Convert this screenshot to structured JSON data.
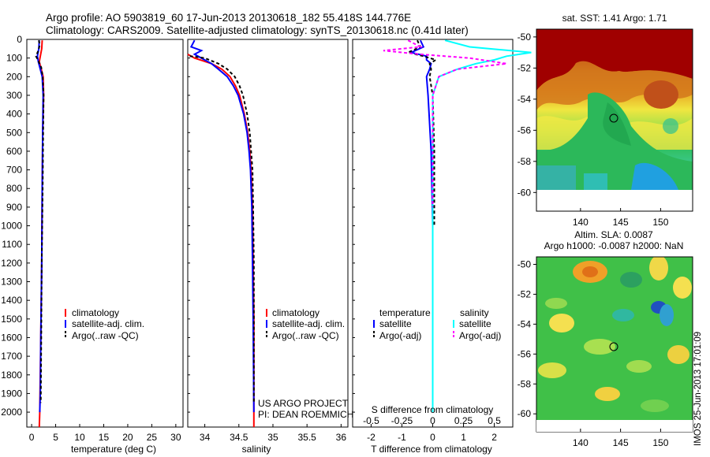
{
  "header": {
    "title_line1": "Argo profile: AO 5903819_60 17-Jun-2013 20130618_182 55.418S 144.776E",
    "title_line2": "Climatology: CARS2009. Satellite-adjusted climatology: synTS_20130618.nc (0.41d later)"
  },
  "colors": {
    "climatology": "#ff0000",
    "satellite": "#0000ff",
    "argo": "#000000",
    "sal_satellite": "#00ffff",
    "sal_argo": "#ff00ff"
  },
  "footer": {
    "project_line1": "US ARGO PROJECT",
    "project_line2": "PI: DEAN ROEMMICH",
    "timestamp": "IMOS 25-Jun-2013 17:01:09"
  },
  "chart_data": [
    {
      "id": "temperature",
      "type": "line",
      "xlabel": "temperature (deg C)",
      "ylabel": "depth",
      "xlim": [
        -1,
        31.5
      ],
      "ylim": [
        2080,
        0
      ],
      "xticks": [
        0,
        5,
        10,
        15,
        20,
        25,
        30
      ],
      "yticks": [
        0,
        100,
        200,
        300,
        400,
        500,
        600,
        700,
        800,
        900,
        1000,
        1100,
        1200,
        1300,
        1400,
        1500,
        1600,
        1700,
        1800,
        1900,
        2000
      ],
      "legend": [
        "climatology",
        "satellite-adj. clim.",
        "Argo(..raw -QC)"
      ],
      "series": [
        {
          "name": "climatology",
          "depth": [
            5,
            50,
            90,
            120,
            200,
            300,
            500,
            800,
            1200,
            1600,
            2000,
            2080
          ],
          "values": [
            2.2,
            2.1,
            1.8,
            1.6,
            2.4,
            2.5,
            2.3,
            2.2,
            2.1,
            1.9,
            1.7,
            1.6
          ]
        },
        {
          "name": "satellite-adj. clim.",
          "depth": [
            5,
            50,
            90,
            120,
            200,
            300,
            500,
            800,
            1200,
            1600,
            1900,
            2000
          ],
          "values": [
            1.6,
            1.5,
            1.2,
            1.4,
            2.2,
            2.4,
            2.3,
            2.2,
            2.1,
            1.9,
            1.8,
            1.7
          ]
        },
        {
          "name": "Argo(..raw -QC)",
          "depth": [
            5,
            30,
            60,
            90,
            110,
            150,
            200,
            300,
            500,
            800,
            1200,
            1600,
            1950
          ],
          "values": [
            1.5,
            1.7,
            1.4,
            0.9,
            1.3,
            2.0,
            2.3,
            2.5,
            2.4,
            2.3,
            2.1,
            2.0,
            1.9
          ]
        }
      ]
    },
    {
      "id": "salinity",
      "type": "line",
      "xlabel": "salinity",
      "ylabel": "depth",
      "xlim": [
        33.75,
        36.1
      ],
      "ylim": [
        2080,
        0
      ],
      "xticks": [
        34,
        34.5,
        35,
        35.5,
        36
      ],
      "legend": [
        "climatology",
        "satellite-adj. clim.",
        "Argo(..raw -QC)"
      ],
      "series": [
        {
          "name": "climatology",
          "depth": [
            80,
            100,
            130,
            160,
            200,
            250,
            300,
            400,
            500,
            600,
            700,
            900,
            1200,
            1500,
            2000,
            2080
          ],
          "values": [
            33.75,
            33.85,
            34.1,
            34.25,
            34.37,
            34.45,
            34.51,
            34.58,
            34.63,
            34.66,
            34.68,
            34.7,
            34.71,
            34.72,
            34.72,
            34.72
          ]
        },
        {
          "name": "satellite-adj. clim.",
          "depth": [
            5,
            40,
            60,
            80,
            100,
            130,
            160,
            200,
            250,
            300,
            400,
            500,
            600,
            700,
            900,
            1200,
            1500,
            2000
          ],
          "values": [
            33.85,
            33.8,
            33.95,
            33.85,
            33.95,
            34.1,
            34.2,
            34.33,
            34.42,
            34.49,
            34.57,
            34.62,
            34.65,
            34.67,
            34.69,
            34.7,
            34.71,
            34.72
          ]
        },
        {
          "name": "Argo(..raw -QC)",
          "depth": [
            90,
            100,
            130,
            160,
            200,
            250,
            300,
            400,
            500,
            600,
            700,
            900,
            1200,
            1500,
            1950
          ],
          "values": [
            33.78,
            34.0,
            34.2,
            34.33,
            34.44,
            34.51,
            34.56,
            34.62,
            34.66,
            34.68,
            34.7,
            34.71,
            34.72,
            34.72,
            34.72
          ]
        }
      ]
    },
    {
      "id": "difference",
      "type": "line",
      "xlabel": "T difference from climatology",
      "xlabel_top": "S difference from climatology",
      "ylabel": "depth",
      "xlim": [
        -2.6,
        2.6
      ],
      "ylim": [
        2080,
        0
      ],
      "xticks": [
        -2,
        -1,
        0,
        1,
        2
      ],
      "xticks_s": [
        -0.5,
        -0.25,
        0,
        0.25,
        0.5
      ],
      "legend_titles": [
        "temperature",
        "salinity"
      ],
      "legend": [
        "satellite",
        "Argo(-adj)",
        "satellite",
        "Argo(-adj)"
      ],
      "series": [
        {
          "name": "temperature satellite",
          "depth": [
            5,
            40,
            70,
            90,
            110,
            130,
            160,
            200,
            300,
            600,
            1000,
            1500,
            2000
          ],
          "values": [
            -0.4,
            -0.3,
            -0.7,
            -0.2,
            -0.2,
            -0.05,
            -0.1,
            -0.2,
            -0.15,
            -0.05,
            0,
            0,
            0
          ]
        },
        {
          "name": "temperature Argo(-adj)",
          "depth": [
            5,
            40,
            70,
            90,
            110,
            130,
            160,
            200,
            300,
            600,
            1000
          ],
          "values": [
            -0.5,
            -0.4,
            -0.8,
            -0.3,
            0.1,
            -0.1,
            -0.05,
            -0.1,
            0,
            0.05,
            0.05
          ]
        },
        {
          "name": "salinity satellite",
          "depth": [
            5,
            40,
            70,
            90,
            110,
            130,
            160,
            200,
            300,
            600,
            1000,
            2000
          ],
          "values": [
            0.1,
            0.3,
            0.8,
            0.6,
            0.5,
            0.35,
            0.2,
            0.05,
            0,
            0,
            0,
            0
          ]
        },
        {
          "name": "salinity Argo(-adj)",
          "depth": [
            5,
            40,
            60,
            80,
            100,
            130,
            160,
            200,
            300,
            600,
            900
          ],
          "values": [
            -0.2,
            -0.1,
            -0.4,
            -0.1,
            0.3,
            0.6,
            0.2,
            0.05,
            0,
            0,
            0
          ]
        }
      ]
    },
    {
      "id": "sst_map",
      "type": "heatmap",
      "title": "sat. SST: 1.41  Argo: 1.71",
      "xticks": [
        140,
        145,
        150
      ],
      "yticks": [
        -50,
        -52,
        -54,
        -56,
        -58,
        -60
      ],
      "xlim": [
        134.5,
        154
      ],
      "ylim": [
        -61.2,
        -49.5
      ],
      "marker": {
        "lon": 144.776,
        "lat": -55.418
      }
    },
    {
      "id": "sla_map",
      "type": "heatmap",
      "title": "Altim. SLA: 0.0087",
      "subtitle": "Argo h1000: -0.0087  h2000: NaN",
      "xticks": [
        140,
        145,
        150
      ],
      "yticks": [
        -50,
        -52,
        -54,
        -56,
        -58,
        -60
      ],
      "xlim": [
        134.5,
        154
      ],
      "ylim": [
        -61.2,
        -49.5
      ],
      "marker": {
        "lon": 144.776,
        "lat": -55.418
      }
    }
  ]
}
